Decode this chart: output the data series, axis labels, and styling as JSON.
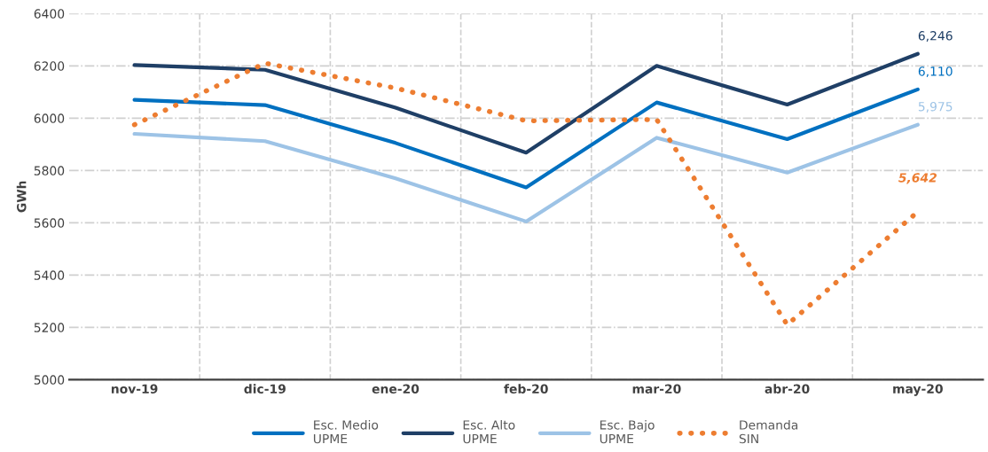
{
  "chart_data": {
    "type": "line",
    "ylabel": "GWh",
    "categories": [
      "nov-19",
      "dic-19",
      "ene-20",
      "feb-20",
      "mar-20",
      "abr-20",
      "may-20"
    ],
    "ylim": [
      5000,
      6400
    ],
    "yticks": [
      5000,
      5200,
      5400,
      5600,
      5800,
      6000,
      6200,
      6400
    ],
    "grid": true,
    "legend": "bottom",
    "series": [
      {
        "name": "Esc. Medio\nUPME",
        "color": "#0070c0",
        "line_style": "solid",
        "values": [
          6070,
          6050,
          5905,
          5735,
          6060,
          5920,
          6110
        ],
        "value_labels": [
          null,
          null,
          null,
          null,
          null,
          null,
          "6,110"
        ]
      },
      {
        "name": "Esc. Alto\nUPME",
        "color": "#1f3f66",
        "line_style": "solid",
        "values": [
          6203,
          6185,
          6040,
          5868,
          6200,
          6052,
          6246
        ],
        "value_labels": [
          null,
          null,
          null,
          null,
          null,
          null,
          "6,246"
        ]
      },
      {
        "name": "Esc. Bajo\nUPME",
        "color": "#9dc3e6",
        "line_style": "solid",
        "values": [
          5940,
          5912,
          5770,
          5605,
          5925,
          5792,
          5975
        ],
        "value_labels": [
          null,
          null,
          null,
          null,
          null,
          null,
          "5,975"
        ]
      },
      {
        "name": "Demanda\nSIN",
        "color": "#ed7d31",
        "line_style": "dotted",
        "values": [
          5975,
          6210,
          6115,
          5990,
          5995,
          5210,
          5642
        ],
        "value_labels": [
          null,
          null,
          null,
          null,
          null,
          null,
          "5,642"
        ]
      }
    ]
  }
}
